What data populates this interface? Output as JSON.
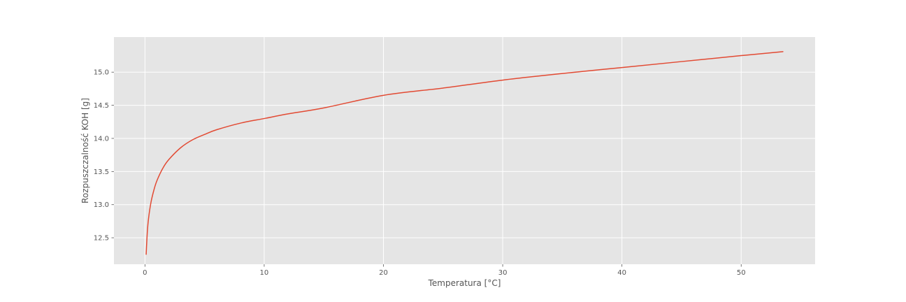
{
  "chart_data": {
    "type": "line",
    "title": "",
    "xlabel": "Temperatura [°C]",
    "ylabel": "Rozpuszczalność KOH [g]",
    "xlim": [
      -2.6,
      56.2
    ],
    "ylim": [
      12.1,
      15.53
    ],
    "xticks": [
      0,
      10,
      20,
      30,
      40,
      50
    ],
    "yticks": [
      12.5,
      13.0,
      13.5,
      14.0,
      14.5,
      15.0
    ],
    "xtick_labels": [
      "0",
      "10",
      "20",
      "30",
      "40",
      "50"
    ],
    "ytick_labels": [
      "12.5",
      "13.0",
      "13.5",
      "14.0",
      "14.5",
      "15.0"
    ],
    "grid": true,
    "legend": "none",
    "series": [
      {
        "color": "#E24A33",
        "x": [
          0.1,
          0.2,
          0.3,
          0.5,
          0.75,
          1.0,
          1.5,
          2.0,
          3.0,
          4.0,
          5.0,
          6.0,
          8.0,
          10.0,
          12.0,
          15.0,
          20.0,
          25.0,
          30.0,
          35.0,
          40.0,
          45.0,
          50.0,
          53.5
        ],
        "y": [
          12.25,
          12.59,
          12.79,
          13.03,
          13.22,
          13.36,
          13.55,
          13.68,
          13.86,
          13.98,
          14.06,
          14.13,
          14.23,
          14.3,
          14.37,
          14.46,
          14.65,
          14.76,
          14.88,
          14.98,
          15.07,
          15.16,
          15.25,
          15.31
        ]
      }
    ]
  }
}
